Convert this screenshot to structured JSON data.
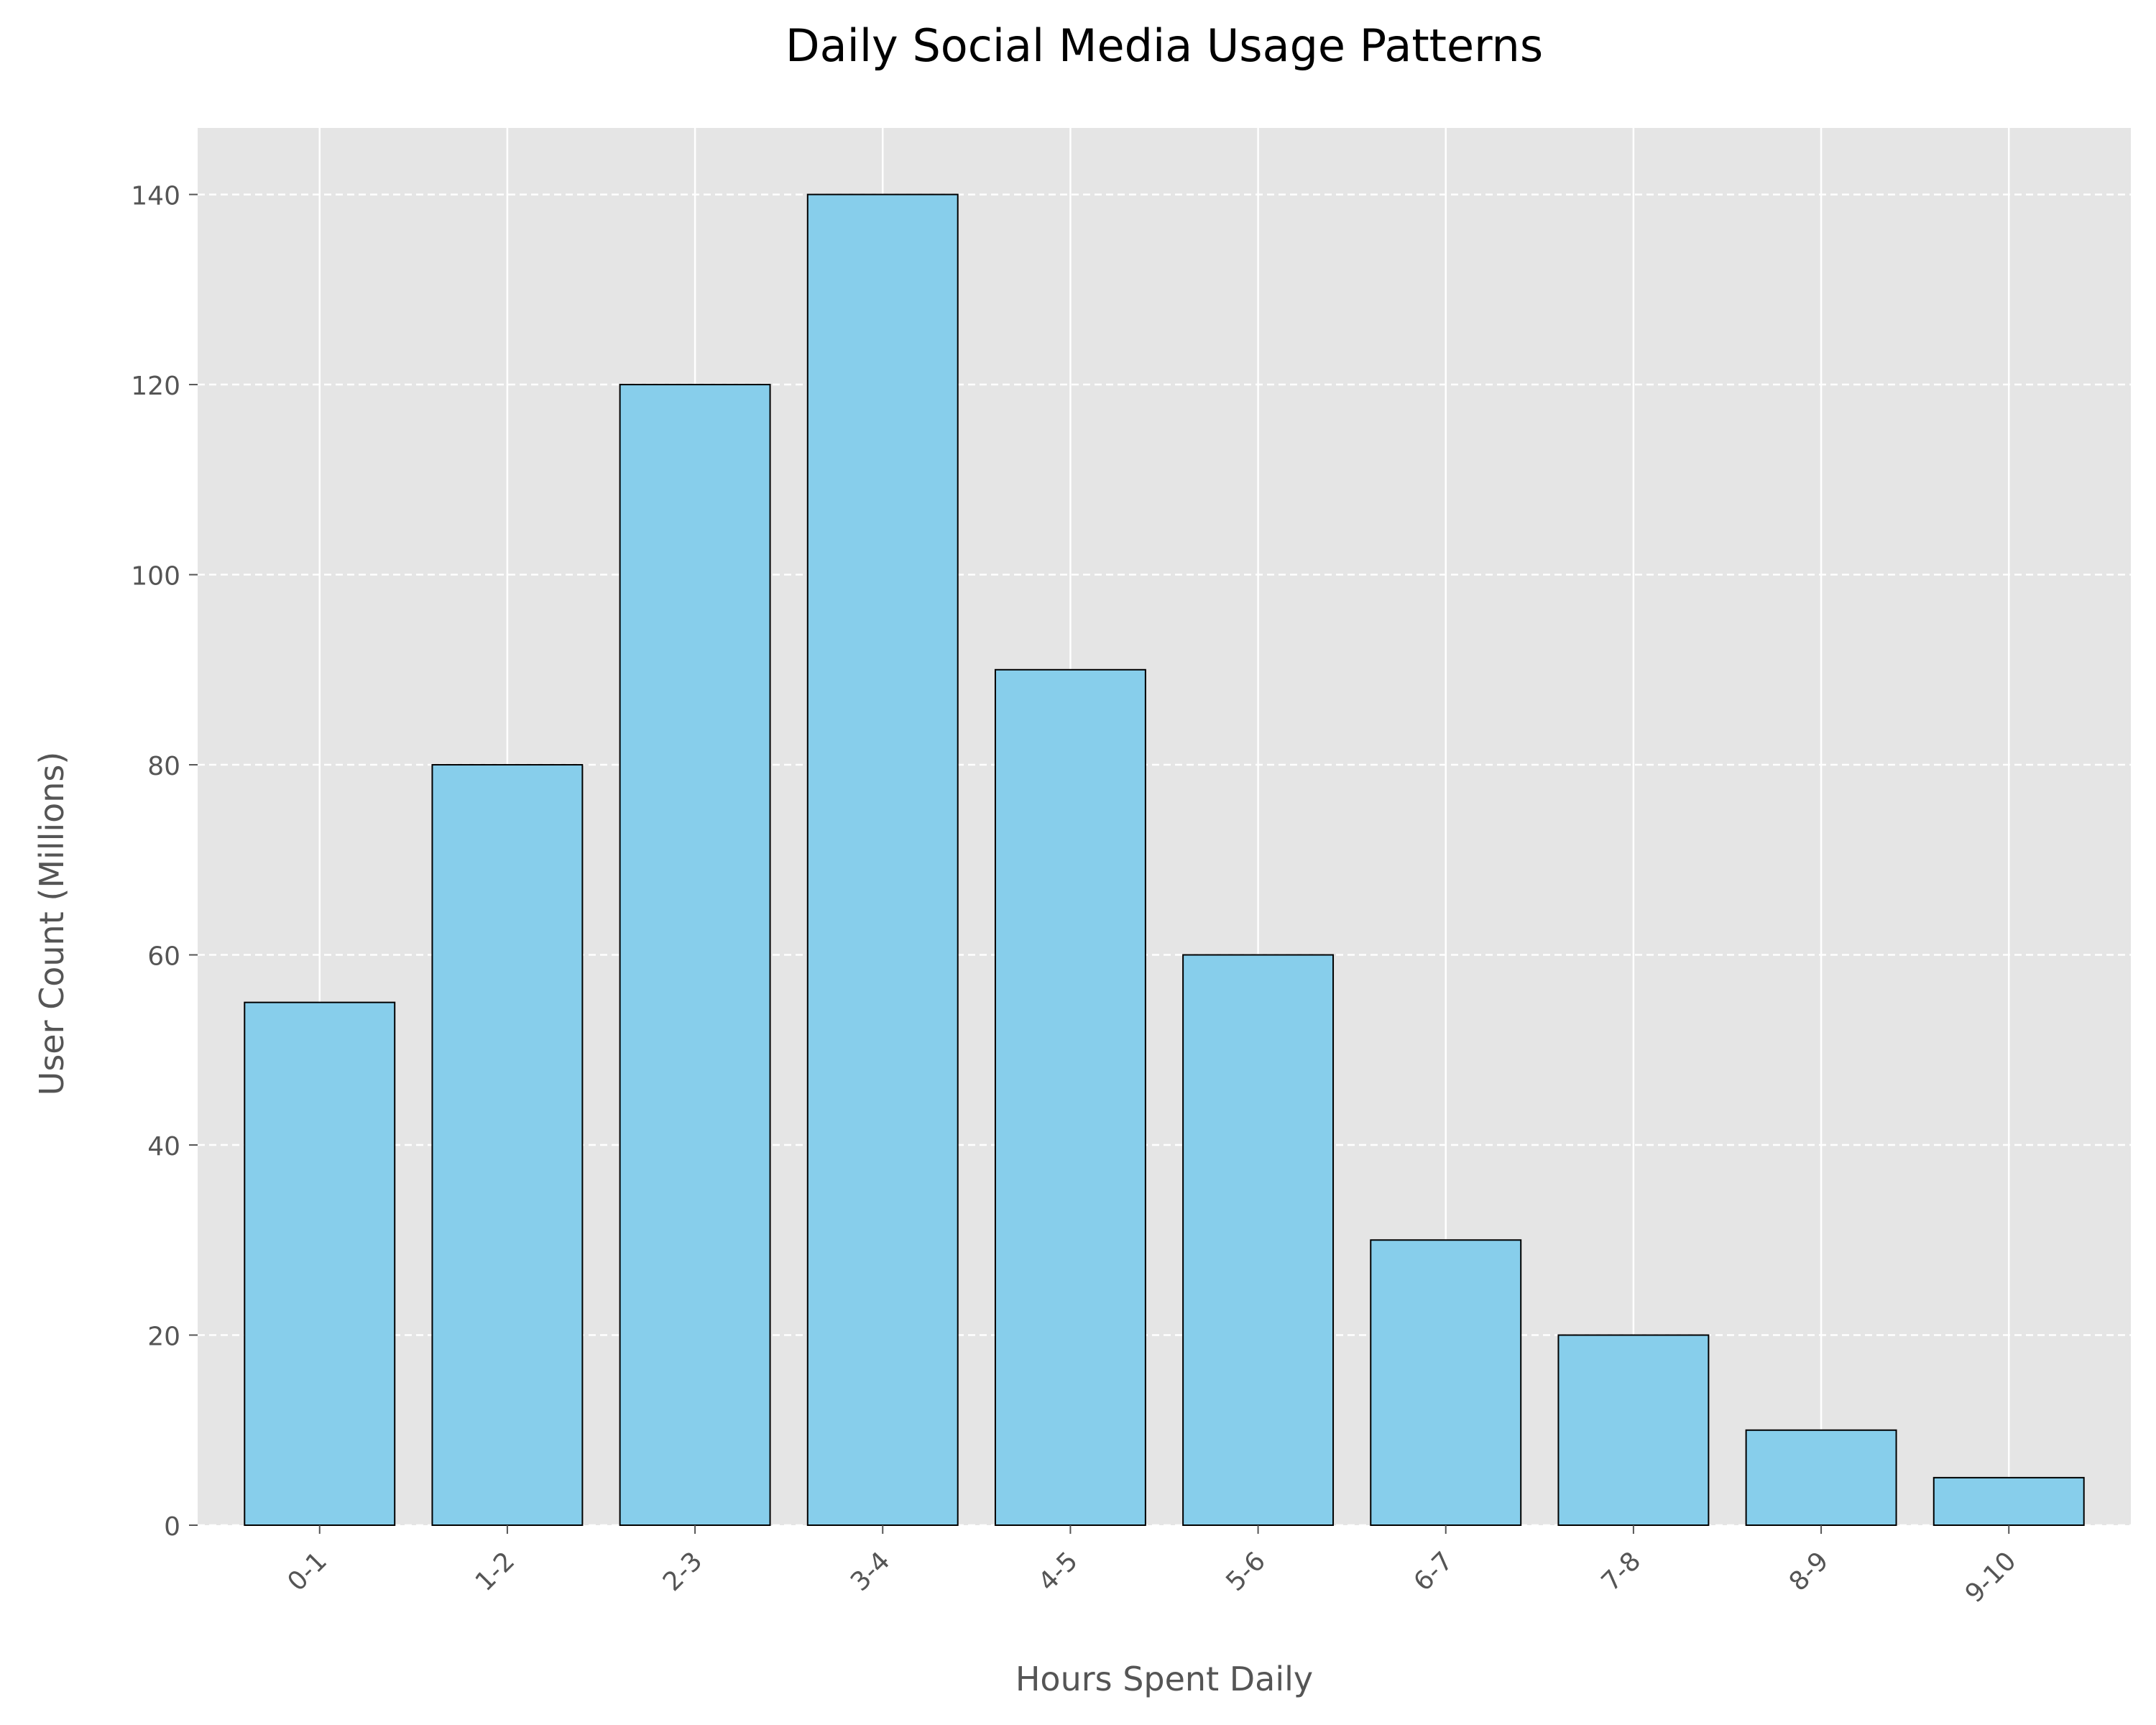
{
  "chart_data": {
    "type": "bar",
    "title": "Daily Social Media Usage Patterns",
    "xlabel": "Hours Spent Daily",
    "ylabel": "User Count (Millions)",
    "categories": [
      "0-1",
      "1-2",
      "2-3",
      "3-4",
      "4-5",
      "5-6",
      "6-7",
      "7-8",
      "8-9",
      "9-10"
    ],
    "values": [
      55,
      80,
      120,
      140,
      90,
      60,
      30,
      20,
      10,
      5
    ],
    "ylim": [
      0,
      147
    ],
    "yticks": [
      0,
      20,
      40,
      60,
      80,
      100,
      120,
      140
    ],
    "grid": true,
    "legend": "none",
    "colors": {
      "bar_fill": "#87CEEB",
      "bar_edge": "#000000",
      "plot_background": "#E5E5E5",
      "grid": "#FFFFFF",
      "text": "#555555",
      "title": "#000000"
    }
  }
}
